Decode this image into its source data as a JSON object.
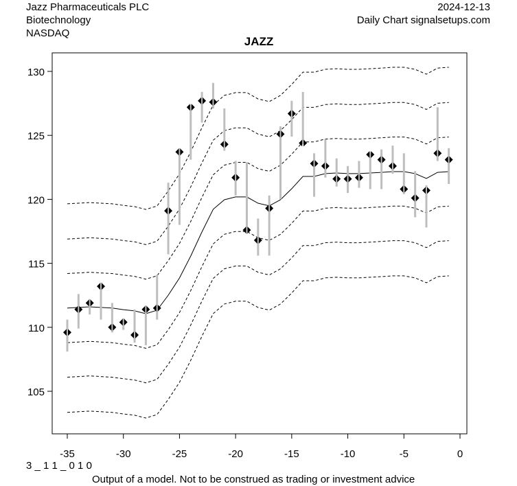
{
  "header": {
    "company": "Jazz Pharmaceuticals PLC",
    "sector": "Biotechnology",
    "exchange": "NASDAQ",
    "date": "2024-12-13",
    "source": "Daily Chart signalsetups.com"
  },
  "footer": {
    "code": "3 _ 1 1 _ 0 1 0",
    "disclaimer": "Output of a model. Not to be construed as trading or investment advice"
  },
  "chart_data": {
    "type": "line",
    "title": "JAZZ",
    "xlabel": "",
    "ylabel": "",
    "xlim": [
      -36.3,
      0.6
    ],
    "ylim": [
      101.9,
      131.6
    ],
    "xticks": [
      -35,
      -30,
      -25,
      -20,
      -15,
      -10,
      -5,
      0
    ],
    "yticks": [
      105,
      110,
      115,
      120,
      125,
      130
    ],
    "grid": false,
    "colors": {
      "range": "#bebebe",
      "marker": "#000000",
      "model": "#000000"
    },
    "band_offsets": [
      -8.15,
      -5.4,
      -2.7,
      2.7,
      5.4,
      8.15
    ],
    "x": [
      -35,
      -34,
      -33,
      -32,
      -31,
      -30,
      -29,
      -28,
      -27,
      -26,
      -25,
      -24,
      -23,
      -22,
      -21,
      -20,
      -19,
      -18,
      -17,
      -16,
      -15,
      -14,
      -13,
      -12,
      -11,
      -10,
      -9,
      -8,
      -7,
      -6,
      -5,
      -4,
      -3,
      -2,
      -1
    ],
    "close": [
      109.6,
      111.4,
      111.9,
      113.2,
      110.0,
      110.4,
      109.4,
      111.4,
      111.5,
      119.1,
      123.7,
      127.2,
      127.7,
      127.6,
      124.3,
      121.7,
      117.6,
      116.8,
      119.3,
      125.1,
      126.7,
      124.4,
      122.8,
      122.6,
      121.6,
      121.6,
      121.7,
      123.5,
      123.1,
      122.6,
      120.8,
      120.1,
      120.7,
      123.6,
      123.1
    ],
    "high": [
      110.6,
      112.6,
      112.2,
      113.5,
      111.9,
      110.7,
      111.4,
      111.7,
      114.1,
      121.3,
      124.0,
      127.4,
      128.4,
      129.1,
      127.1,
      123.0,
      122.9,
      118.5,
      120.3,
      125.7,
      127.7,
      128.4,
      123.6,
      124.7,
      123.2,
      122.6,
      123.0,
      123.7,
      123.9,
      124.2,
      123.6,
      122.2,
      121.1,
      127.2,
      124.0
    ],
    "low": [
      108.1,
      109.9,
      111.0,
      110.6,
      109.6,
      109.8,
      108.8,
      108.6,
      110.6,
      115.7,
      118.0,
      123.1,
      126.0,
      127.1,
      123.8,
      120.3,
      117.3,
      115.6,
      115.6,
      120.0,
      124.9,
      124.3,
      120.2,
      121.7,
      121.0,
      120.5,
      120.9,
      120.8,
      120.8,
      122.0,
      120.4,
      118.6,
      117.8,
      123.0,
      121.2
    ],
    "model": [
      111.5,
      111.55,
      111.6,
      111.55,
      111.5,
      111.38,
      111.28,
      111.06,
      111.33,
      112.51,
      113.85,
      115.57,
      117.45,
      119.22,
      119.97,
      120.19,
      120.19,
      119.7,
      119.49,
      119.97,
      120.83,
      121.79,
      121.79,
      122.01,
      122.06,
      122.01,
      122.01,
      122.06,
      122.11,
      122.17,
      122.17,
      122.01,
      121.63,
      122.11,
      122.17
    ]
  }
}
